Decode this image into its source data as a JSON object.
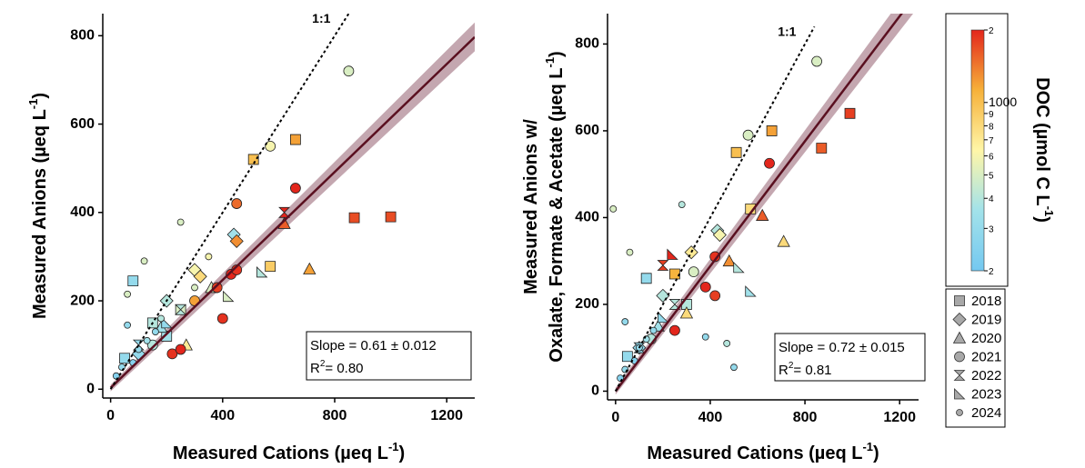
{
  "chart_data": [
    {
      "type": "scatter",
      "xlim": [
        -28,
        1300
      ],
      "ylim": [
        -20,
        850
      ],
      "xticks": [
        0,
        400,
        800,
        1200
      ],
      "yticks": [
        0,
        200,
        400,
        600,
        800
      ],
      "x_label": {
        "text": "Measured Cations (µeq  L",
        "sup": "-1",
        "tail": ")"
      },
      "y_label": {
        "text": "Measured Anions (µeq L",
        "sup": "-1",
        "tail": ")"
      },
      "one_to_one": {
        "label": "1:1",
        "x": [
          0,
          850
        ],
        "y": [
          0,
          850
        ]
      },
      "fit": {
        "x": [
          0,
          1300
        ],
        "y": [
          3,
          797
        ],
        "lower": [
          -5,
          765
        ],
        "upper": [
          10,
          830
        ],
        "color": "#5a1020",
        "band_color": "#b08a96"
      },
      "stats": {
        "slope": "Slope = 0.61 ± 0.012",
        "r2": {
          "base": "R",
          "sup": "2",
          "tail": "= 0.80"
        }
      },
      "series": [
        {
          "name": "2018",
          "marker": "square",
          "x": [
            510,
            660,
            870,
            1000,
            570,
            80,
            50,
            150,
            250,
            200
          ],
          "y": [
            520,
            565,
            388,
            390,
            278,
            245,
            70,
            150,
            180,
            120
          ],
          "doc": [
            1000,
            1200,
            1700,
            1700,
            900,
            300,
            300,
            400,
            500,
            350
          ]
        },
        {
          "name": "2019",
          "marker": "diamond",
          "x": [
            440,
            450,
            300,
            320,
            200,
            100
          ],
          "y": [
            350,
            335,
            270,
            255,
            200,
            80
          ],
          "doc": [
            350,
            1300,
            600,
            800,
            400,
            300
          ]
        },
        {
          "name": "2020",
          "marker": "triangle",
          "x": [
            710,
            620,
            270,
            360,
            180
          ],
          "y": [
            272,
            375,
            100,
            230,
            140
          ],
          "doc": [
            1200,
            1600,
            700,
            500,
            350
          ]
        },
        {
          "name": "2021",
          "marker": "circle",
          "x": [
            850,
            570,
            450,
            660,
            430,
            450,
            220,
            250,
            400,
            380,
            300,
            150
          ],
          "y": [
            720,
            550,
            420,
            455,
            260,
            270,
            80,
            90,
            160,
            230,
            200,
            100
          ],
          "doc": [
            500,
            600,
            1500,
            2000,
            2000,
            1900,
            1900,
            2000,
            1900,
            1800,
            1200,
            400
          ]
        },
        {
          "name": "2022",
          "marker": "bowtie",
          "x": [
            620,
            100,
            250
          ],
          "y": [
            400,
            100,
            180
          ],
          "doc": [
            2000,
            300,
            400
          ]
        },
        {
          "name": "2023",
          "marker": "wedge",
          "x": [
            540,
            420,
            200
          ],
          "y": [
            265,
            210,
            150
          ],
          "doc": [
            400,
            500,
            300
          ]
        },
        {
          "name": "2024",
          "marker": "dot",
          "x": [
            120,
            250,
            60,
            60,
            20,
            40,
            80,
            100,
            130,
            160,
            180,
            300,
            350
          ],
          "y": [
            290,
            378,
            215,
            145,
            30,
            50,
            60,
            90,
            110,
            130,
            160,
            230,
            300
          ],
          "doc": [
            500,
            500,
            500,
            300,
            250,
            300,
            250,
            300,
            350,
            300,
            400,
            500,
            600
          ]
        }
      ]
    },
    {
      "type": "scatter",
      "xlim": [
        -34,
        1280
      ],
      "ylim": [
        -20,
        870
      ],
      "xticks": [
        0,
        400,
        800,
        1200
      ],
      "yticks": [
        0,
        200,
        400,
        600,
        800
      ],
      "x_label": {
        "text": "Measured Cations (µeq L",
        "sup": "-1",
        "tail": ")"
      },
      "y_label": {
        "line1": "Measured Anions w/",
        "text": "Oxalate, Formate & Acetate (µeq L",
        "sup": "-1",
        "tail": ")"
      },
      "one_to_one": {
        "label": "1:1",
        "x": [
          0,
          840
        ],
        "y": [
          0,
          840
        ]
      },
      "fit": {
        "x": [
          0,
          1300
        ],
        "y": [
          0,
          936
        ],
        "lower": [
          -8,
          900
        ],
        "upper": [
          8,
          972
        ],
        "color": "#5a1020",
        "band_color": "#b08a96"
      },
      "stats": {
        "slope": "Slope = 0.72 ± 0.015",
        "r2": {
          "base": "R",
          "sup": "2",
          "tail": "= 0.81"
        }
      },
      "series": [
        {
          "marker": "square",
          "x": [
            510,
            660,
            870,
            990,
            570,
            130,
            50,
            250,
            300
          ],
          "y": [
            550,
            600,
            560,
            640,
            420,
            260,
            80,
            270,
            200
          ],
          "doc": [
            1000,
            1200,
            1600,
            1800,
            800,
            300,
            300,
            1100,
            400
          ]
        },
        {
          "marker": "diamond",
          "x": [
            430,
            440,
            320,
            200,
            100
          ],
          "y": [
            370,
            360,
            320,
            220,
            100
          ],
          "doc": [
            400,
            600,
            700,
            400,
            300
          ]
        },
        {
          "marker": "triangle",
          "x": [
            710,
            620,
            480,
            300,
            180
          ],
          "y": [
            345,
            405,
            300,
            180,
            150
          ],
          "doc": [
            800,
            1600,
            1300,
            800,
            350
          ]
        },
        {
          "marker": "circle",
          "x": [
            850,
            560,
            650,
            420,
            250,
            380,
            420,
            330,
            150
          ],
          "y": [
            760,
            590,
            525,
            310,
            140,
            240,
            220,
            275,
            120
          ],
          "doc": [
            500,
            500,
            2000,
            1900,
            2000,
            2000,
            1800,
            500,
            400
          ]
        },
        {
          "marker": "bowtie",
          "x": [
            200,
            100,
            250
          ],
          "y": [
            290,
            100,
            200
          ],
          "doc": [
            1800,
            300,
            400
          ]
        },
        {
          "marker": "wedge",
          "x": [
            520,
            570,
            240,
            200
          ],
          "y": [
            285,
            230,
            315,
            170
          ],
          "doc": [
            400,
            350,
            2000,
            300
          ]
        },
        {
          "marker": "dot",
          "x": [
            -10,
            60,
            280,
            40,
            20,
            40,
            80,
            100,
            130,
            160,
            380,
            470,
            500
          ],
          "y": [
            420,
            320,
            430,
            160,
            30,
            50,
            70,
            100,
            120,
            140,
            125,
            110,
            55
          ],
          "doc": [
            500,
            500,
            400,
            300,
            250,
            300,
            250,
            300,
            350,
            300,
            300,
            400,
            300
          ]
        }
      ]
    },
    {
      "type": "colorbar",
      "scale": "log",
      "clim": [
        200,
        2000
      ],
      "label": {
        "text": "DOC (µmol C L",
        "sup": "-1",
        "tail": ")"
      },
      "ticks": [
        {
          "value": 200,
          "label": "2"
        },
        {
          "value": 300,
          "label": "3"
        },
        {
          "value": 400,
          "label": "4"
        },
        {
          "value": 500,
          "label": "5"
        },
        {
          "value": 600,
          "label": "6"
        },
        {
          "value": 700,
          "label": "7"
        },
        {
          "value": 800,
          "label": "8"
        },
        {
          "value": 900,
          "label": "9"
        },
        1000,
        {
          "value": 2000,
          "label": "2"
        }
      ],
      "colormap": [
        "#74c8f0",
        "#a2e2ea",
        "#fff6a8",
        "#f6b13a",
        "#e3261c"
      ]
    }
  ]
}
